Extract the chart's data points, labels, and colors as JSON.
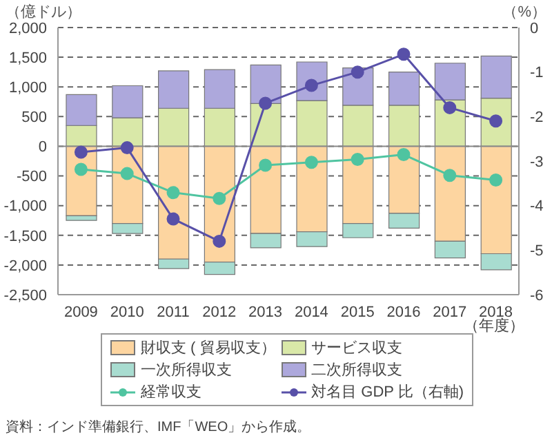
{
  "chart_data": {
    "type": "bar",
    "stacked": true,
    "categories": [
      "2009",
      "2010",
      "2011",
      "2012",
      "2013",
      "2014",
      "2015",
      "2016",
      "2017",
      "2018"
    ],
    "series": [
      {
        "name": "財収支 ( 貿易収支）",
        "color": "#fdd5a0",
        "values": [
          -1170,
          -1300,
          -1900,
          -1950,
          -1470,
          -1440,
          -1300,
          -1130,
          -1600,
          -1810
        ]
      },
      {
        "name": "サービス収支",
        "color": "#d9e8a8",
        "values": [
          350,
          480,
          640,
          640,
          720,
          770,
          690,
          690,
          780,
          810
        ]
      },
      {
        "name": "一次所得収支",
        "color": "#a8dcd0",
        "values": [
          -80,
          -170,
          -160,
          -210,
          -240,
          -250,
          -240,
          -250,
          -280,
          -270
        ]
      },
      {
        "name": "二次所得収支",
        "color": "#ada8dc",
        "values": [
          520,
          540,
          630,
          650,
          650,
          650,
          630,
          560,
          620,
          710
        ]
      },
      {
        "name": "経常収支",
        "type": "line",
        "color": "#4fc4a0",
        "values": [
          -390,
          -460,
          -780,
          -880,
          -320,
          -270,
          -220,
          -140,
          -490,
          -570
        ]
      },
      {
        "name": "対名目 GDP 比（右軸)",
        "type": "line",
        "axis": "y2",
        "color": "#5850a8",
        "values": [
          -2.8,
          -2.7,
          -4.3,
          -4.8,
          -1.7,
          -1.3,
          -1.0,
          -0.6,
          -1.8,
          -2.1
        ]
      }
    ],
    "ylabel": "（億ドル）",
    "y2label": "（%）",
    "xlabel": "（年度）",
    "ylim": [
      -2500,
      2000
    ],
    "yticks": [
      {
        "value": -2500,
        "label": "-2,500"
      },
      {
        "value": -2000,
        "label": "-2,000"
      },
      {
        "value": -1500,
        "label": "-1,500"
      },
      {
        "value": -1000,
        "label": "-1,000"
      },
      -500,
      0,
      500,
      {
        "value": 1000,
        "label": "1,000"
      },
      {
        "value": 1500,
        "label": "1,500"
      },
      {
        "value": 2000,
        "label": "2,000"
      }
    ],
    "y2lim": [
      -6,
      0
    ],
    "y2ticks": [
      -6,
      -5,
      -4,
      -3,
      -2,
      -1,
      0
    ],
    "ref_lines": [
      {
        "axis": "y",
        "value": 0,
        "color": "#888888"
      }
    ],
    "grid": "y",
    "legend": "bottom",
    "marker": "circle",
    "line_style": "solid",
    "annotations": [
      "資料：インド準備銀行、IMF「WEO」から作成。"
    ]
  }
}
